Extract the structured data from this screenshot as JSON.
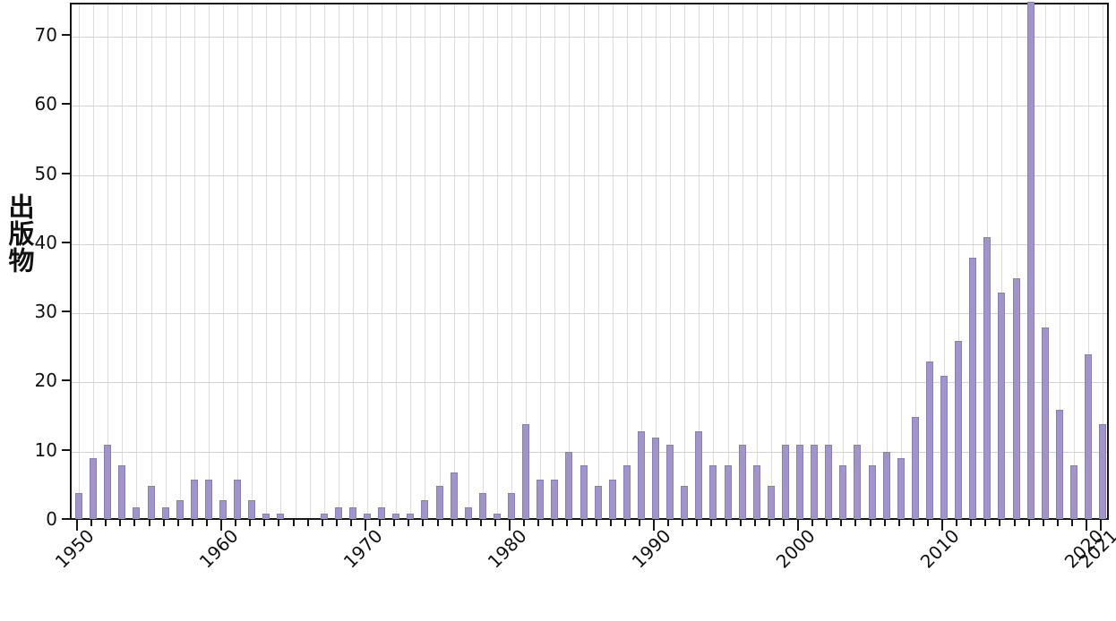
{
  "chart_data": {
    "type": "bar",
    "title": "",
    "xlabel": "",
    "ylabel": "出版物",
    "x": [
      1950,
      1951,
      1952,
      1953,
      1954,
      1955,
      1956,
      1957,
      1958,
      1959,
      1960,
      1961,
      1962,
      1963,
      1964,
      1965,
      1966,
      1967,
      1968,
      1969,
      1970,
      1971,
      1972,
      1973,
      1974,
      1975,
      1976,
      1977,
      1978,
      1979,
      1980,
      1981,
      1982,
      1983,
      1984,
      1985,
      1986,
      1987,
      1988,
      1989,
      1990,
      1991,
      1992,
      1993,
      1994,
      1995,
      1996,
      1997,
      1998,
      1999,
      2000,
      2001,
      2002,
      2003,
      2004,
      2005,
      2006,
      2007,
      2008,
      2009,
      2010,
      2011,
      2012,
      2013,
      2014,
      2015,
      2016,
      2017,
      2018,
      2019,
      2020,
      2021
    ],
    "values": [
      4,
      9,
      11,
      8,
      2,
      5,
      2,
      3,
      6,
      6,
      3,
      6,
      3,
      1,
      1,
      0,
      0,
      1,
      2,
      2,
      1,
      2,
      1,
      1,
      3,
      5,
      7,
      2,
      4,
      1,
      4,
      14,
      6,
      6,
      10,
      8,
      5,
      6,
      8,
      13,
      12,
      11,
      5,
      13,
      8,
      8,
      11,
      8,
      5,
      11,
      11,
      11,
      11,
      8,
      11,
      8,
      10,
      9,
      15,
      23,
      21,
      26,
      38,
      41,
      33,
      35,
      75,
      28,
      16,
      8,
      24,
      14
    ],
    "xtick_labels": [
      "1950",
      "1960",
      "1970",
      "1980",
      "1990",
      "2000",
      "2010",
      "2020",
      "2021"
    ],
    "xtick_years": [
      1950,
      1960,
      1970,
      1980,
      1990,
      2000,
      2010,
      2020,
      2021
    ],
    "ytick_values": [
      0,
      10,
      20,
      30,
      40,
      50,
      60,
      70
    ],
    "ylim": [
      0,
      74.5
    ],
    "xlim": [
      1949.5,
      2021.75
    ],
    "grid": true,
    "legend_position": "none",
    "bar_color": "#a094c8",
    "bar_edge_color": "#8a7db8",
    "clipped_top_years": [
      2016
    ]
  }
}
